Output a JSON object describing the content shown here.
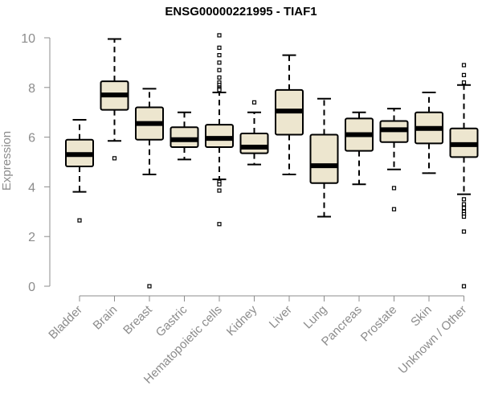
{
  "chart_data": {
    "type": "boxplot",
    "title": "ENSG00000221995 - TIAF1",
    "xlabel": "",
    "ylabel": "Expression",
    "ylim": [
      0,
      10
    ],
    "yticks": [
      0,
      2,
      4,
      6,
      8,
      10
    ],
    "grid": false,
    "legend": "none",
    "box_fill": "#ede6cf",
    "box_stroke": "#000000",
    "axis_color": "#8c8c8c",
    "categories": [
      "Bladder",
      "Brain",
      "Breast",
      "Gastric",
      "Hematopoietic cells",
      "Kidney",
      "Liver",
      "Lung",
      "Pancreas",
      "Prostate",
      "Skin",
      "Unknown / Other"
    ],
    "boxes": [
      {
        "label": "Bladder",
        "whisker_low": 3.8,
        "q1": 4.82,
        "median": 5.3,
        "q3": 5.9,
        "whisker_high": 6.7,
        "outliers": [
          2.65
        ]
      },
      {
        "label": "Brain",
        "whisker_low": 5.85,
        "q1": 7.1,
        "median": 7.7,
        "q3": 8.25,
        "whisker_high": 9.95,
        "outliers": [
          5.15
        ]
      },
      {
        "label": "Breast",
        "whisker_low": 4.5,
        "q1": 5.9,
        "median": 6.55,
        "q3": 7.2,
        "whisker_high": 7.95,
        "outliers": [
          0.0
        ]
      },
      {
        "label": "Gastric",
        "whisker_low": 5.1,
        "q1": 5.6,
        "median": 5.9,
        "q3": 6.4,
        "whisker_high": 7.0,
        "outliers": []
      },
      {
        "label": "Hematopoietic cells",
        "whisker_low": 4.3,
        "q1": 5.6,
        "median": 5.95,
        "q3": 6.5,
        "whisker_high": 7.8,
        "outliers": [
          10.1,
          9.6,
          9.3,
          9.0,
          8.7,
          8.4,
          8.2,
          8.1,
          8.0,
          7.95,
          7.9,
          4.2,
          4.1,
          3.85,
          2.5
        ]
      },
      {
        "label": "Kidney",
        "whisker_low": 4.9,
        "q1": 5.35,
        "median": 5.6,
        "q3": 6.15,
        "whisker_high": 7.0,
        "outliers": [
          7.4
        ]
      },
      {
        "label": "Liver",
        "whisker_low": 4.5,
        "q1": 6.1,
        "median": 7.05,
        "q3": 7.9,
        "whisker_high": 9.3,
        "outliers": []
      },
      {
        "label": "Lung",
        "whisker_low": 2.8,
        "q1": 4.15,
        "median": 4.85,
        "q3": 6.1,
        "whisker_high": 7.55,
        "outliers": []
      },
      {
        "label": "Pancreas",
        "whisker_low": 4.1,
        "q1": 5.45,
        "median": 6.1,
        "q3": 6.75,
        "whisker_high": 7.0,
        "outliers": []
      },
      {
        "label": "Prostate",
        "whisker_low": 4.7,
        "q1": 5.8,
        "median": 6.3,
        "q3": 6.65,
        "whisker_high": 7.15,
        "outliers": [
          3.95,
          3.1
        ]
      },
      {
        "label": "Skin",
        "whisker_low": 4.55,
        "q1": 5.75,
        "median": 6.35,
        "q3": 7.0,
        "whisker_high": 7.8,
        "outliers": []
      },
      {
        "label": "Unknown / Other",
        "whisker_low": 3.7,
        "q1": 5.2,
        "median": 5.7,
        "q3": 6.35,
        "whisker_high": 8.1,
        "outliers": [
          8.9,
          8.5,
          8.2,
          3.5,
          3.3,
          3.15,
          3.0,
          2.9,
          2.8,
          2.2,
          0.0
        ]
      }
    ]
  }
}
